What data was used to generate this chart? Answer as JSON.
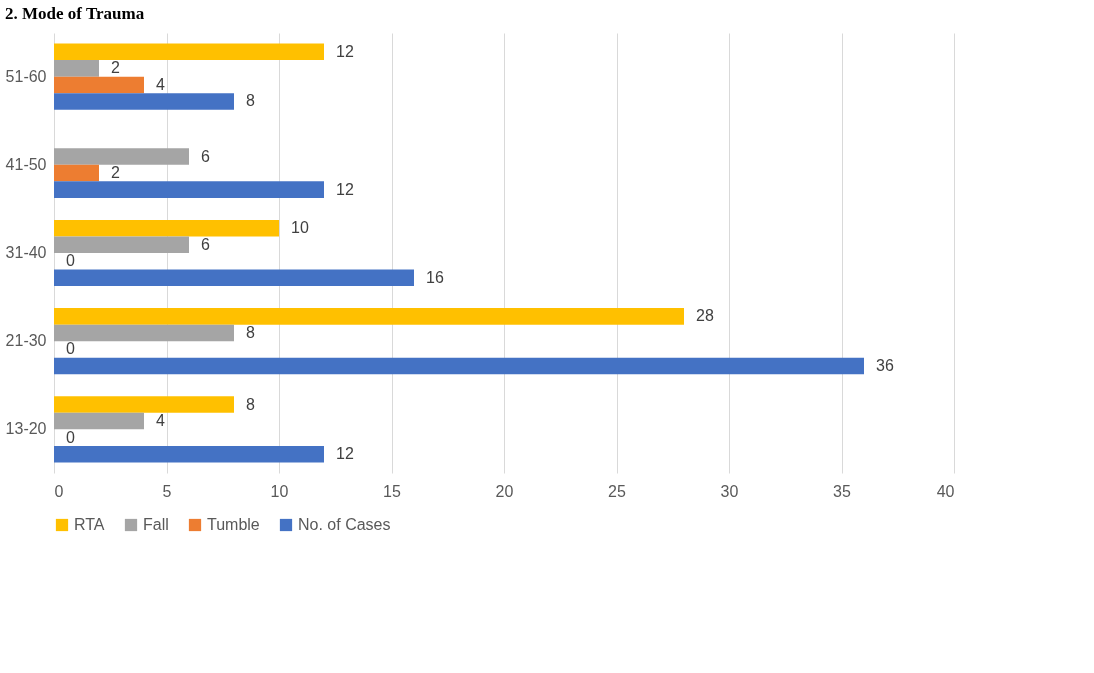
{
  "chart_data": {
    "type": "bar",
    "orientation": "horizontal",
    "title": "2. Mode of Trauma",
    "categories": [
      "51-60",
      "41-50",
      "31-40",
      "21-30",
      "13-20"
    ],
    "series": [
      {
        "name": "RTA",
        "color": "#ffc000",
        "values": [
          12,
          null,
          10,
          28,
          8
        ]
      },
      {
        "name": "Fall",
        "color": "#a5a5a5",
        "values": [
          2,
          6,
          6,
          8,
          4
        ]
      },
      {
        "name": "Tumble",
        "color": "#ed7d31",
        "values": [
          4,
          2,
          0,
          0,
          0
        ]
      },
      {
        "name": "No. of Cases",
        "color": "#4472c4",
        "values": [
          8,
          12,
          16,
          36,
          12
        ]
      }
    ],
    "xlim": [
      0,
      40
    ],
    "xticks": [
      0,
      5,
      10,
      15,
      20,
      25,
      30,
      35,
      40
    ],
    "grid": "x",
    "legend": "bottom",
    "data_labels": true
  }
}
